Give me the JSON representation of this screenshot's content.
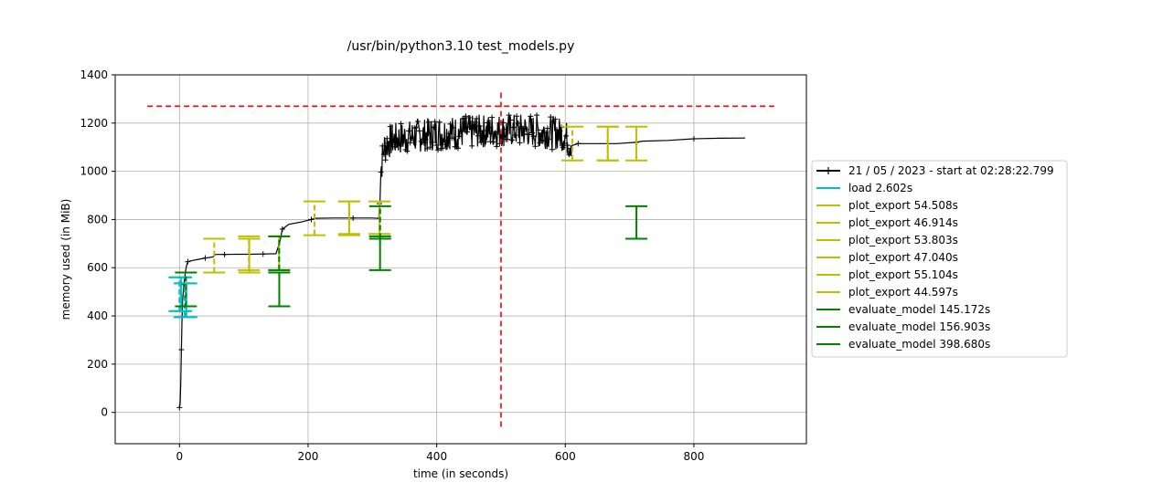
{
  "chart_data": {
    "type": "line",
    "title": "/usr/bin/python3.10 test_models.py",
    "xlabel": "time (in seconds)",
    "ylabel": "memory used (in MiB)",
    "xlim": [
      -100,
      975
    ],
    "ylim": [
      -130,
      1400
    ],
    "xticks": [
      0,
      200,
      400,
      600,
      800
    ],
    "xtick_labels": [
      "0",
      "200",
      "400",
      "600",
      "800"
    ],
    "yticks": [
      0,
      200,
      400,
      600,
      800,
      1000,
      1200,
      1400
    ],
    "ytick_labels": [
      "0",
      "200",
      "400",
      "600",
      "800",
      "1000",
      "1200",
      "1400"
    ],
    "grid": true,
    "legend_position": "right, outside plot",
    "memory_series": {
      "name": "21 / 05 / 2023 - start at 02:28:22.799",
      "color": "#000000",
      "marker": "+",
      "points": [
        [
          0,
          20
        ],
        [
          1,
          35
        ],
        [
          2,
          120
        ],
        [
          3,
          260
        ],
        [
          4,
          390
        ],
        [
          5,
          470
        ],
        [
          7,
          530
        ],
        [
          9,
          580
        ],
        [
          11,
          610
        ],
        [
          13,
          625
        ],
        [
          20,
          630
        ],
        [
          30,
          635
        ],
        [
          40,
          640
        ],
        [
          52,
          645
        ],
        [
          56,
          655
        ],
        [
          70,
          655
        ],
        [
          90,
          656
        ],
        [
          110,
          656
        ],
        [
          130,
          657
        ],
        [
          150,
          658
        ],
        [
          156,
          705
        ],
        [
          160,
          760
        ],
        [
          170,
          780
        ],
        [
          190,
          790
        ],
        [
          205,
          800
        ],
        [
          210,
          805
        ],
        [
          240,
          806
        ],
        [
          270,
          806
        ],
        [
          300,
          806
        ],
        [
          310,
          806
        ],
        [
          313,
          1000
        ],
        [
          318,
          1100
        ],
        [
          330,
          1130
        ],
        [
          350,
          1140
        ],
        [
          380,
          1150
        ],
        [
          420,
          1160
        ],
        [
          460,
          1165
        ],
        [
          500,
          1170
        ],
        [
          540,
          1170
        ],
        [
          580,
          1160
        ],
        [
          600,
          1150
        ],
        [
          605,
          1120
        ],
        [
          620,
          1115
        ],
        [
          650,
          1115
        ],
        [
          680,
          1115
        ],
        [
          710,
          1120
        ],
        [
          720,
          1125
        ],
        [
          760,
          1128
        ],
        [
          800,
          1135
        ],
        [
          840,
          1137
        ],
        [
          880,
          1138
        ]
      ],
      "noise_segments": [
        [
          310,
          610,
          70
        ]
      ]
    },
    "max_memory_hline": {
      "y": 1270,
      "x_range": [
        -50,
        925
      ],
      "color": "#ff0000"
    },
    "max_memory_vline": {
      "x": 500,
      "y_range": [
        -60,
        1335
      ],
      "color": "#ff0000"
    },
    "brackets": [
      {
        "name": "load 2.602s",
        "color": "#00c0c0",
        "start": 0.0,
        "end": 2.602,
        "y_low": 420,
        "y_high": 560
      },
      {
        "name": "load 2.602s",
        "color": "#00c0c0",
        "start": 8.0,
        "end": 10.602,
        "y_low": 395,
        "y_high": 535
      },
      {
        "name": "evaluate_model 145.172s",
        "color": "#008000",
        "start": 10.0,
        "end": 155.172,
        "y_low": 440,
        "y_high": 580
      },
      {
        "name": "plot_export 54.508s",
        "color": "#bfbf00",
        "start": 54.0,
        "end": 108.508,
        "y_low": 580,
        "y_high": 720
      },
      {
        "name": "plot_export 46.914s",
        "color": "#bfbf00",
        "start": 108.0,
        "end": 154.914,
        "y_low": 590,
        "y_high": 730
      },
      {
        "name": "evaluate_model 156.903s",
        "color": "#008000",
        "start": 155.0,
        "end": 311.903,
        "y_low": 590,
        "y_high": 730
      },
      {
        "name": "plot_export 53.803s",
        "color": "#bfbf00",
        "start": 210.0,
        "end": 263.803,
        "y_low": 735,
        "y_high": 875
      },
      {
        "name": "plot_export 47.040s",
        "color": "#bfbf00",
        "start": 264.0,
        "end": 311.04,
        "y_low": 740,
        "y_high": 875
      },
      {
        "name": "evaluate_model 398.680s",
        "color": "#008000",
        "start": 312.0,
        "end": 710.68,
        "y_low": 720,
        "y_high": 855
      },
      {
        "name": "plot_export 55.104s",
        "color": "#bfbf00",
        "start": 611.0,
        "end": 666.104,
        "y_low": 1045,
        "y_high": 1185
      },
      {
        "name": "plot_export 44.597s",
        "color": "#bfbf00",
        "start": 666.0,
        "end": 710.597,
        "y_low": 1045,
        "y_high": 1185
      }
    ],
    "legend": [
      {
        "label": "21 / 05 / 2023 - start at 02:28:22.799",
        "color": "#000000",
        "marker": "+"
      },
      {
        "label": "load 2.602s",
        "color": "#00c0c0"
      },
      {
        "label": "plot_export 54.508s",
        "color": "#bfbf00"
      },
      {
        "label": "plot_export 46.914s",
        "color": "#bfbf00"
      },
      {
        "label": "plot_export 53.803s",
        "color": "#bfbf00"
      },
      {
        "label": "plot_export 47.040s",
        "color": "#bfbf00"
      },
      {
        "label": "plot_export 55.104s",
        "color": "#bfbf00"
      },
      {
        "label": "plot_export 44.597s",
        "color": "#bfbf00"
      },
      {
        "label": "evaluate_model 145.172s",
        "color": "#008000"
      },
      {
        "label": "evaluate_model 156.903s",
        "color": "#008000"
      },
      {
        "label": "evaluate_model 398.680s",
        "color": "#008000"
      }
    ]
  }
}
